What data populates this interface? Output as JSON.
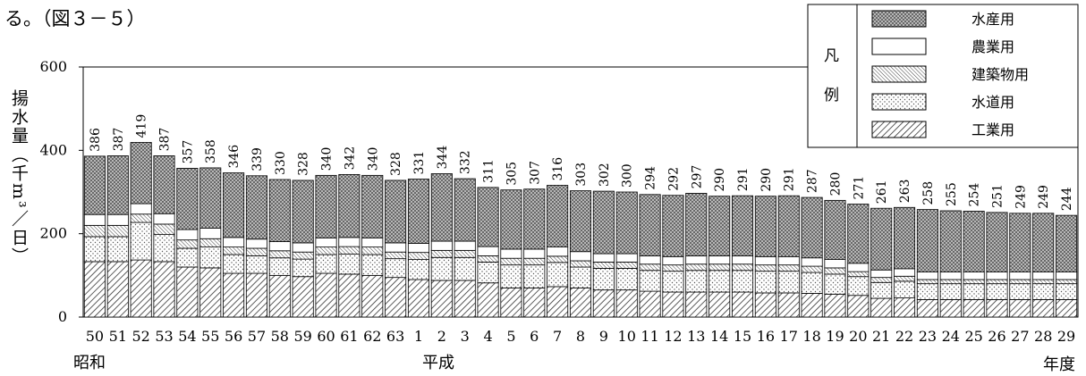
{
  "caption": "る。（図３－５）",
  "chart_data": {
    "type": "stacked_bar",
    "y_label": "揚水量（千m³／日）",
    "x_label": "年度",
    "eras": [
      "昭和",
      "平成"
    ],
    "legend_title": [
      "凡",
      "例"
    ],
    "categories": [
      "50",
      "51",
      "52",
      "53",
      "54",
      "55",
      "56",
      "57",
      "58",
      "59",
      "60",
      "61",
      "62",
      "63",
      "1",
      "2",
      "3",
      "4",
      "5",
      "6",
      "7",
      "8",
      "9",
      "10",
      "11",
      "12",
      "13",
      "14",
      "15",
      "16",
      "17",
      "18",
      "19",
      "20",
      "21",
      "22",
      "23",
      "24",
      "25",
      "26",
      "27",
      "28",
      "29"
    ],
    "ylim": [
      0,
      600
    ],
    "yticks": [
      0,
      200,
      400,
      600
    ],
    "series": [
      {
        "name": "工業用",
        "color": "#555555",
        "values": [
          133,
          133,
          137,
          133,
          120,
          118,
          105,
          105,
          100,
          97,
          105,
          103,
          100,
          95,
          90,
          88,
          88,
          82,
          70,
          70,
          73,
          70,
          65,
          65,
          62,
          60,
          60,
          60,
          60,
          58,
          58,
          57,
          55,
          52,
          45,
          46,
          42,
          42,
          42,
          42,
          42,
          42,
          42
        ]
      },
      {
        "name": "水道用",
        "color": "#888888",
        "values": [
          60,
          60,
          90,
          65,
          45,
          50,
          45,
          42,
          42,
          42,
          45,
          48,
          50,
          45,
          48,
          55,
          55,
          50,
          55,
          55,
          58,
          50,
          52,
          52,
          50,
          50,
          52,
          52,
          52,
          52,
          52,
          50,
          48,
          45,
          38,
          40,
          38,
          38,
          38,
          38,
          38,
          38,
          38
        ]
      },
      {
        "name": "建築物用",
        "color": "#444444",
        "values": [
          27,
          27,
          20,
          25,
          20,
          20,
          18,
          18,
          17,
          17,
          18,
          18,
          18,
          16,
          17,
          17,
          17,
          15,
          16,
          16,
          15,
          15,
          15,
          15,
          15,
          15,
          15,
          15,
          15,
          15,
          15,
          15,
          15,
          12,
          12,
          12,
          10,
          10,
          10,
          10,
          10,
          10,
          10
        ]
      },
      {
        "name": "農業用",
        "color": "#ffffff",
        "values": [
          26,
          26,
          25,
          25,
          25,
          25,
          23,
          22,
          22,
          22,
          22,
          22,
          22,
          22,
          22,
          22,
          22,
          22,
          22,
          22,
          22,
          22,
          20,
          20,
          20,
          20,
          20,
          20,
          20,
          20,
          20,
          20,
          20,
          20,
          18,
          18,
          18,
          18,
          18,
          18,
          18,
          18,
          18
        ]
      },
      {
        "name": "水産用",
        "color": "#777777",
        "values": [
          140,
          141,
          147,
          139,
          147,
          145,
          155,
          152,
          149,
          150,
          150,
          151,
          150,
          150,
          154,
          162,
          150,
          142,
          142,
          144,
          148,
          146,
          150,
          148,
          147,
          147,
          150,
          143,
          144,
          145,
          146,
          145,
          142,
          142,
          148,
          147,
          150,
          147,
          146,
          143,
          141,
          141,
          136
        ]
      }
    ],
    "totals": [
      386,
      387,
      419,
      387,
      357,
      358,
      346,
      339,
      330,
      328,
      340,
      342,
      340,
      328,
      331,
      344,
      332,
      311,
      305,
      307,
      316,
      303,
      302,
      300,
      294,
      292,
      297,
      290,
      291,
      290,
      291,
      287,
      280,
      271,
      261,
      263,
      258,
      255,
      254,
      251,
      249,
      249,
      244
    ]
  }
}
